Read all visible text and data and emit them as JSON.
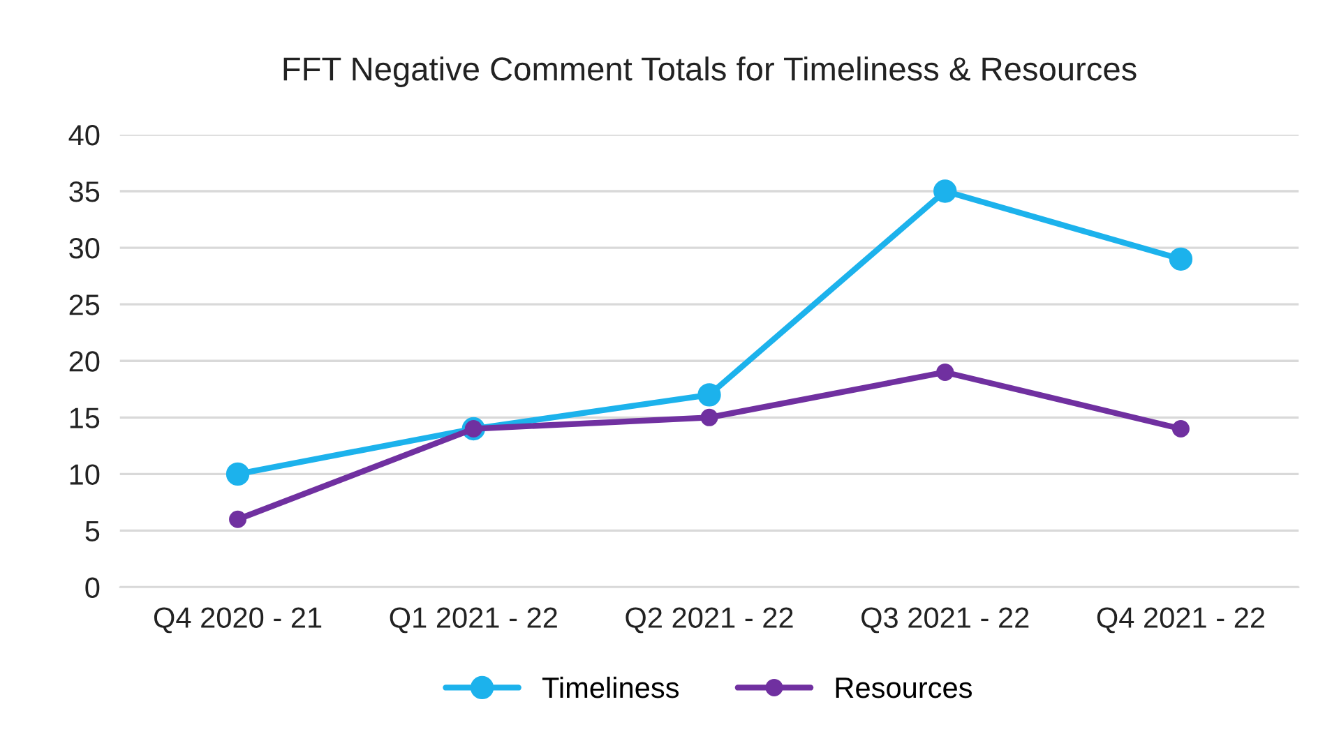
{
  "chart_data": {
    "type": "line",
    "title": "FFT Negative Comment Totals for Timeliness & Resources",
    "categories": [
      "Q4 2020 - 21",
      "Q1 2021 - 22",
      "Q2 2021 - 22",
      "Q3 2021 - 22",
      "Q4 2021 - 22"
    ],
    "series": [
      {
        "name": "Timeliness",
        "color": "#1cb2ec",
        "values": [
          10,
          14,
          17,
          35,
          29
        ]
      },
      {
        "name": "Resources",
        "color": "#7030a0",
        "values": [
          6,
          14,
          15,
          19,
          14
        ]
      }
    ],
    "ylim": [
      0,
      40
    ],
    "yticks": [
      0,
      5,
      10,
      15,
      20,
      25,
      30,
      35,
      40
    ],
    "grid": "y",
    "legend": "bottom",
    "marker": "circle",
    "line_style": "solid"
  }
}
